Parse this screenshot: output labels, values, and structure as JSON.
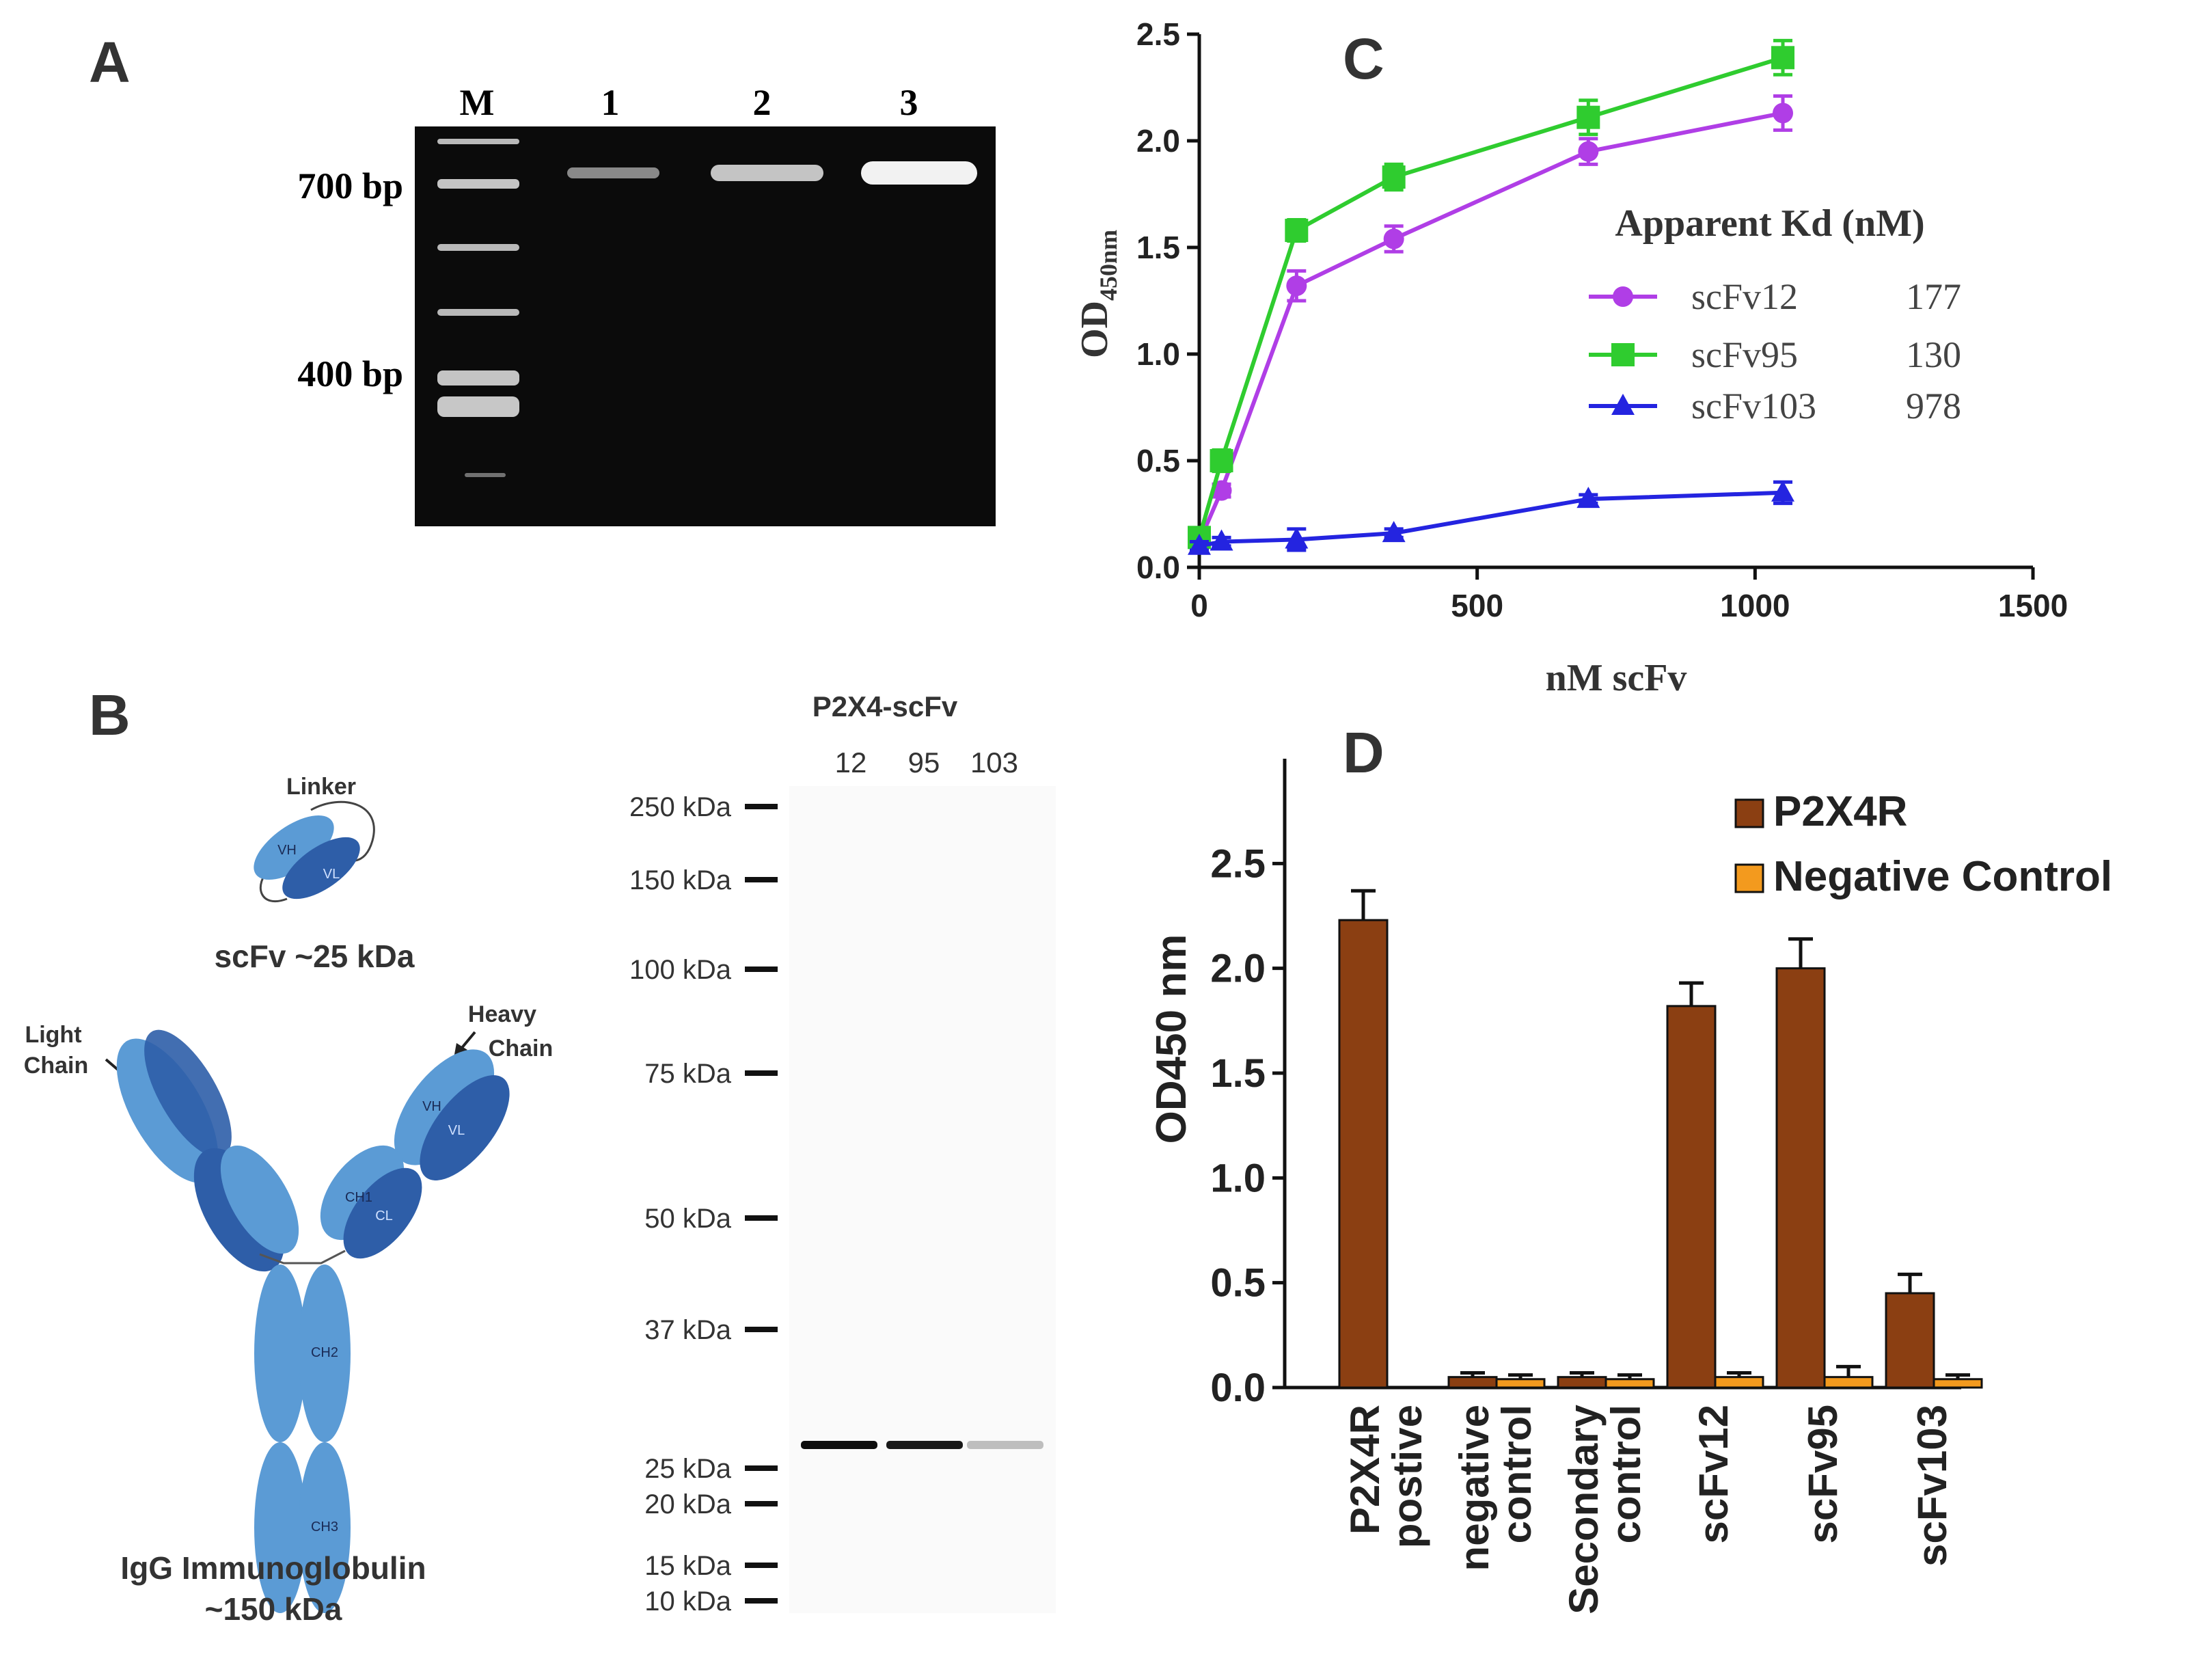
{
  "panels": {
    "a": "A",
    "b": "B",
    "c": "C",
    "d": "D"
  },
  "gel": {
    "lane_labels": [
      "M",
      "1",
      "2",
      "3"
    ],
    "size_labels": [
      "700 bp",
      "400 bp"
    ],
    "lane_intensity": [
      0.55,
      0.8,
      1.0
    ]
  },
  "schematic": {
    "linker": "Linker",
    "scfv_caption": "scFv ~25 kDa",
    "light_chain": [
      "Light",
      "Chain"
    ],
    "heavy_chain": [
      "Heavy",
      "Chain"
    ],
    "domains": {
      "vh": "VH",
      "vl": "VL",
      "ch1": "CH1",
      "cl": "CL",
      "ch2": "CH2",
      "ch3": "CH3"
    },
    "igg_caption": [
      "IgG Immunoglobulin",
      "~150 kDa"
    ]
  },
  "western": {
    "title": "P2X4-scFv",
    "lanes": [
      "12",
      "95",
      "103"
    ],
    "markers": [
      "250 kDa",
      "150 kDa",
      "100 kDa",
      "75 kDa",
      "50 kDa",
      "37 kDa",
      "25 kDa",
      "20 kDa",
      "15 kDa",
      "10 kDa"
    ],
    "band_intensity": [
      1.0,
      0.95,
      0.25
    ]
  },
  "chart_data": [
    {
      "type": "line",
      "panel": "C",
      "ylabel_main": "OD",
      "ylabel_sub": "450nm",
      "xlabel": "nM scFv",
      "xlim": [
        0,
        1500
      ],
      "ylim": [
        0,
        2.5
      ],
      "xticks": [
        "0",
        "500",
        "1000",
        "1500"
      ],
      "yticks": [
        "0.0",
        "0.5",
        "1.0",
        "1.5",
        "2.0",
        "2.5"
      ],
      "legend_title": "Apparent Kd (nM)",
      "series": [
        {
          "name": "scFv12",
          "kd": "177",
          "color": "#b03ee6",
          "marker": "circle",
          "x": [
            0,
            40,
            175,
            350,
            700,
            1050
          ],
          "y": [
            0.12,
            0.36,
            1.32,
            1.54,
            1.95,
            2.13
          ],
          "err": [
            0.02,
            0.03,
            0.07,
            0.06,
            0.06,
            0.08
          ]
        },
        {
          "name": "scFv95",
          "kd": "130",
          "color": "#2fcc2f",
          "marker": "square",
          "x": [
            0,
            40,
            175,
            350,
            700,
            1050
          ],
          "y": [
            0.14,
            0.5,
            1.58,
            1.83,
            2.11,
            2.39
          ],
          "err": [
            0.02,
            0.05,
            0.05,
            0.06,
            0.08,
            0.08
          ]
        },
        {
          "name": "scFv103",
          "kd": "978",
          "color": "#2424e0",
          "marker": "triangle",
          "x": [
            0,
            40,
            175,
            350,
            700,
            1050
          ],
          "y": [
            0.1,
            0.12,
            0.13,
            0.16,
            0.32,
            0.35
          ],
          "err": [
            0.02,
            0.02,
            0.05,
            0.02,
            0.02,
            0.05
          ]
        }
      ]
    },
    {
      "type": "bar",
      "panel": "D",
      "ylabel": "OD450 nm",
      "ylim": [
        0,
        3.0
      ],
      "yticks": [
        "0.0",
        "0.5",
        "1.0",
        "1.5",
        "2.0",
        "2.5"
      ],
      "categories": [
        [
          "P2X4R",
          "postive"
        ],
        [
          "negative",
          "control"
        ],
        [
          "Secondary",
          "control"
        ],
        [
          "scFv12"
        ],
        [
          "scFv95"
        ],
        [
          "scFv103"
        ]
      ],
      "series": [
        {
          "name": "P2X4R",
          "color": "#8b3f12",
          "values": [
            2.23,
            0.05,
            0.05,
            1.82,
            2.0,
            0.45
          ],
          "err": [
            0.14,
            0.02,
            0.02,
            0.11,
            0.14,
            0.09
          ]
        },
        {
          "name": "Negative Control",
          "color": "#f39a1e",
          "values": [
            0.0,
            0.04,
            0.04,
            0.05,
            0.05,
            0.04
          ],
          "err": [
            0.0,
            0.02,
            0.02,
            0.02,
            0.05,
            0.02
          ]
        }
      ]
    }
  ]
}
